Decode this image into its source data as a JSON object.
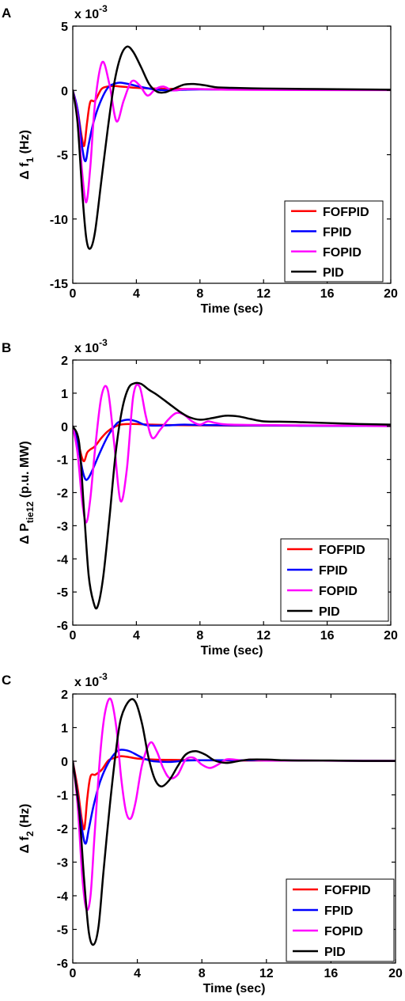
{
  "chart_data": [
    {
      "panel_label": "A",
      "type": "line",
      "exponent_label": "x 10",
      "exponent_power": "-3",
      "xlabel": "Time (sec)",
      "ylabel_main": "Δ f",
      "ylabel_sub": "1",
      "ylabel_tail": " (Hz)",
      "xlim": [
        0,
        20
      ],
      "ylim": [
        -15,
        5
      ],
      "xticks": [
        0,
        4,
        8,
        12,
        16,
        20
      ],
      "yticks": [
        -15,
        -10,
        -5,
        0,
        5
      ],
      "legend_position": "bottom-right",
      "series": [
        {
          "name": "FOFPID",
          "color": "#ff0000",
          "x": [
            0,
            0.3,
            0.55,
            0.72,
            0.9,
            1.1,
            1.4,
            1.8,
            2.2,
            2.6,
            3,
            3.5,
            4,
            5,
            6,
            8,
            10,
            14,
            20
          ],
          "y": [
            0,
            -1.5,
            -3.5,
            -4.3,
            -2.5,
            -0.9,
            -0.8,
            0.1,
            0.3,
            0.35,
            0.3,
            0.25,
            0.2,
            0.15,
            0.12,
            0.1,
            0.08,
            0.05,
            0.03
          ]
        },
        {
          "name": "FPID",
          "color": "#0000ff",
          "x": [
            0,
            0.3,
            0.6,
            0.8,
            1.0,
            1.3,
            1.7,
            2.2,
            2.7,
            3.0,
            3.5,
            4,
            5,
            6,
            7,
            8,
            10,
            14,
            20
          ],
          "y": [
            0,
            -1.5,
            -4.5,
            -5.5,
            -4.2,
            -2.5,
            -1,
            0.2,
            0.55,
            0.6,
            0.5,
            0.35,
            0.1,
            0,
            0.05,
            0.08,
            0.06,
            0.05,
            0.03
          ]
        },
        {
          "name": "FOPID",
          "color": "#ff00ff",
          "x": [
            0,
            0.3,
            0.6,
            0.85,
            1.1,
            1.4,
            1.85,
            2.3,
            2.75,
            3.2,
            3.7,
            4.2,
            4.7,
            5.2,
            5.7,
            6.3,
            7,
            8,
            10,
            14,
            20
          ],
          "y": [
            0,
            -2,
            -6.5,
            -8.7,
            -6,
            -1,
            2.2,
            0.5,
            -2.4,
            -0.8,
            0.7,
            0.4,
            -0.4,
            0.1,
            0.3,
            0,
            0.1,
            0.1,
            0.05,
            0.03,
            0.02
          ]
        },
        {
          "name": "PID",
          "color": "#000000",
          "x": [
            0,
            0.3,
            0.6,
            0.85,
            1.1,
            1.4,
            1.8,
            2.2,
            2.6,
            3.0,
            3.4,
            3.8,
            4.3,
            4.8,
            5.3,
            5.8,
            6.3,
            7,
            7.6,
            8.3,
            9,
            10,
            12,
            14,
            16,
            18,
            20
          ],
          "y": [
            0,
            -2.5,
            -8,
            -11.5,
            -12.3,
            -11,
            -7,
            -3,
            0.5,
            2.6,
            3.4,
            3.0,
            1.8,
            0.5,
            -0.1,
            -0.15,
            0.1,
            0.45,
            0.5,
            0.4,
            0.25,
            0.2,
            0.15,
            0.12,
            0.1,
            0.08,
            0.05
          ]
        }
      ]
    },
    {
      "panel_label": "B",
      "type": "line",
      "exponent_label": "x 10",
      "exponent_power": "-3",
      "xlabel": "Time (sec)",
      "ylabel_main": "Δ P",
      "ylabel_sub": "tie12",
      "ylabel_tail": " (p.u. MW)",
      "xlim": [
        0,
        20
      ],
      "ylim": [
        -6,
        2
      ],
      "xticks": [
        0,
        4,
        8,
        12,
        16,
        20
      ],
      "yticks": [
        -6,
        -5,
        -4,
        -3,
        -2,
        -1,
        0,
        1,
        2
      ],
      "legend_position": "bottom-right",
      "series": [
        {
          "name": "FOFPID",
          "color": "#ff0000",
          "x": [
            0,
            0.3,
            0.55,
            0.72,
            0.9,
            1.1,
            1.4,
            1.8,
            2.2,
            2.6,
            3,
            3.5,
            4,
            5,
            6,
            8,
            10,
            14,
            20
          ],
          "y": [
            0,
            -0.4,
            -0.9,
            -1.05,
            -0.8,
            -0.7,
            -0.6,
            -0.35,
            -0.15,
            -0.02,
            0.05,
            0.07,
            0.07,
            0.05,
            0.04,
            0.03,
            0.02,
            0.02,
            0.01
          ]
        },
        {
          "name": "FPID",
          "color": "#0000ff",
          "x": [
            0,
            0.3,
            0.6,
            0.8,
            1.0,
            1.3,
            1.7,
            2.2,
            2.7,
            3.0,
            3.5,
            4,
            4.5,
            5,
            6,
            7,
            8,
            10,
            14,
            20
          ],
          "y": [
            0,
            -0.5,
            -1.3,
            -1.6,
            -1.55,
            -1.25,
            -0.8,
            -0.3,
            0.05,
            0.15,
            0.2,
            0.15,
            0.05,
            0.02,
            0.03,
            0.05,
            0.04,
            0.03,
            0.02,
            0.01
          ]
        },
        {
          "name": "FOPID",
          "color": "#ff00ff",
          "x": [
            0,
            0.3,
            0.6,
            0.85,
            1.1,
            1.4,
            1.8,
            2.2,
            2.6,
            3.0,
            3.4,
            3.8,
            4.2,
            4.6,
            5.0,
            5.5,
            6,
            6.5,
            7,
            7.5,
            8,
            8.5,
            9,
            10,
            14,
            20
          ],
          "y": [
            0,
            -0.8,
            -2.3,
            -2.9,
            -2.2,
            -0.7,
            0.9,
            1.1,
            -0.5,
            -2.25,
            -1.3,
            0.9,
            1.2,
            0.3,
            -0.35,
            -0.1,
            0.2,
            0.4,
            0.35,
            0.15,
            0.05,
            0.15,
            0.1,
            0.05,
            0.03,
            0.01
          ]
        },
        {
          "name": "PID",
          "color": "#000000",
          "x": [
            0,
            0.4,
            0.7,
            1.0,
            1.3,
            1.55,
            1.9,
            2.3,
            2.7,
            3.1,
            3.5,
            3.9,
            4.3,
            4.8,
            5.3,
            6,
            6.7,
            7.3,
            8,
            8.8,
            9.6,
            10.4,
            11.2,
            12,
            13,
            14,
            16,
            18,
            20
          ],
          "y": [
            0,
            -0.5,
            -2.5,
            -4.5,
            -5.3,
            -5.45,
            -4.6,
            -2.8,
            -0.8,
            0.5,
            1.15,
            1.3,
            1.28,
            1.1,
            0.95,
            0.7,
            0.45,
            0.28,
            0.2,
            0.25,
            0.32,
            0.3,
            0.22,
            0.15,
            0.14,
            0.13,
            0.1,
            0.07,
            0.05
          ]
        }
      ]
    },
    {
      "panel_label": "C",
      "type": "line",
      "exponent_label": "x 10",
      "exponent_power": "-3",
      "xlabel": "Time (sec)",
      "ylabel_main": "Δ f",
      "ylabel_sub": "2",
      "ylabel_tail": " (Hz)",
      "xlim": [
        0,
        20
      ],
      "ylim": [
        -6,
        2
      ],
      "xticks": [
        0,
        4,
        8,
        12,
        16,
        20
      ],
      "yticks": [
        -6,
        -5,
        -4,
        -3,
        -2,
        -1,
        0,
        1,
        2
      ],
      "legend_position": "bottom-right",
      "series": [
        {
          "name": "FOFPID",
          "color": "#ff0000",
          "x": [
            0,
            0.3,
            0.55,
            0.72,
            0.9,
            1.1,
            1.4,
            1.8,
            2.2,
            2.6,
            3.0,
            3.5,
            4,
            5,
            6,
            8,
            10,
            14,
            20
          ],
          "y": [
            0,
            -0.8,
            -1.7,
            -2.0,
            -1.1,
            -0.45,
            -0.4,
            -0.25,
            0.02,
            0.1,
            0.15,
            0.12,
            0.08,
            0.05,
            0.04,
            0.03,
            0.02,
            0.02,
            0.01
          ]
        },
        {
          "name": "FPID",
          "color": "#0000ff",
          "x": [
            0,
            0.3,
            0.6,
            0.8,
            1.0,
            1.3,
            1.7,
            2.2,
            2.7,
            3.0,
            3.5,
            4,
            4.5,
            5,
            6,
            7,
            8,
            10,
            14,
            20
          ],
          "y": [
            0,
            -1,
            -2.1,
            -2.45,
            -2.0,
            -1.3,
            -0.6,
            -0.05,
            0.28,
            0.34,
            0.3,
            0.18,
            0.06,
            0,
            -0.02,
            0.02,
            0.03,
            0.03,
            0.02,
            0.01
          ]
        },
        {
          "name": "FOPID",
          "color": "#ff00ff",
          "x": [
            0,
            0.3,
            0.6,
            0.85,
            1.1,
            1.35,
            1.7,
            2.0,
            2.35,
            2.7,
            3.0,
            3.3,
            3.6,
            3.9,
            4.3,
            4.8,
            5.2,
            5.6,
            6,
            6.5,
            7,
            7.5,
            8,
            8.5,
            9,
            9.5,
            10,
            10.5,
            11,
            12,
            14,
            20
          ],
          "y": [
            0,
            -1.3,
            -3.5,
            -4.4,
            -4.0,
            -2.2,
            0.2,
            1.45,
            1.85,
            1.0,
            -0.5,
            -1.5,
            -1.7,
            -1.2,
            -0.1,
            0.55,
            0.3,
            -0.2,
            -0.5,
            -0.4,
            0.05,
            0.1,
            -0.1,
            -0.2,
            -0.1,
            0.05,
            0.05,
            0.02,
            0.05,
            0.02,
            0.02,
            0.01
          ]
        },
        {
          "name": "PID",
          "color": "#000000",
          "x": [
            0,
            0.4,
            0.7,
            1.0,
            1.3,
            1.6,
            1.9,
            2.3,
            2.7,
            3.0,
            3.5,
            3.9,
            4.3,
            4.7,
            5.1,
            5.5,
            6,
            6.5,
            7,
            7.6,
            8.2,
            8.8,
            9.5,
            10.2,
            11,
            12,
            13,
            14,
            16,
            18,
            20
          ],
          "y": [
            0,
            -1.5,
            -3.5,
            -5.1,
            -5.45,
            -4.9,
            -3.3,
            -1.3,
            0.4,
            1.3,
            1.8,
            1.75,
            1.1,
            0.1,
            -0.55,
            -0.75,
            -0.55,
            -0.15,
            0.2,
            0.3,
            0.2,
            0.02,
            -0.05,
            0,
            0.05,
            0.05,
            0.03,
            0.02,
            0.02,
            0.01,
            0.01
          ]
        }
      ]
    }
  ]
}
